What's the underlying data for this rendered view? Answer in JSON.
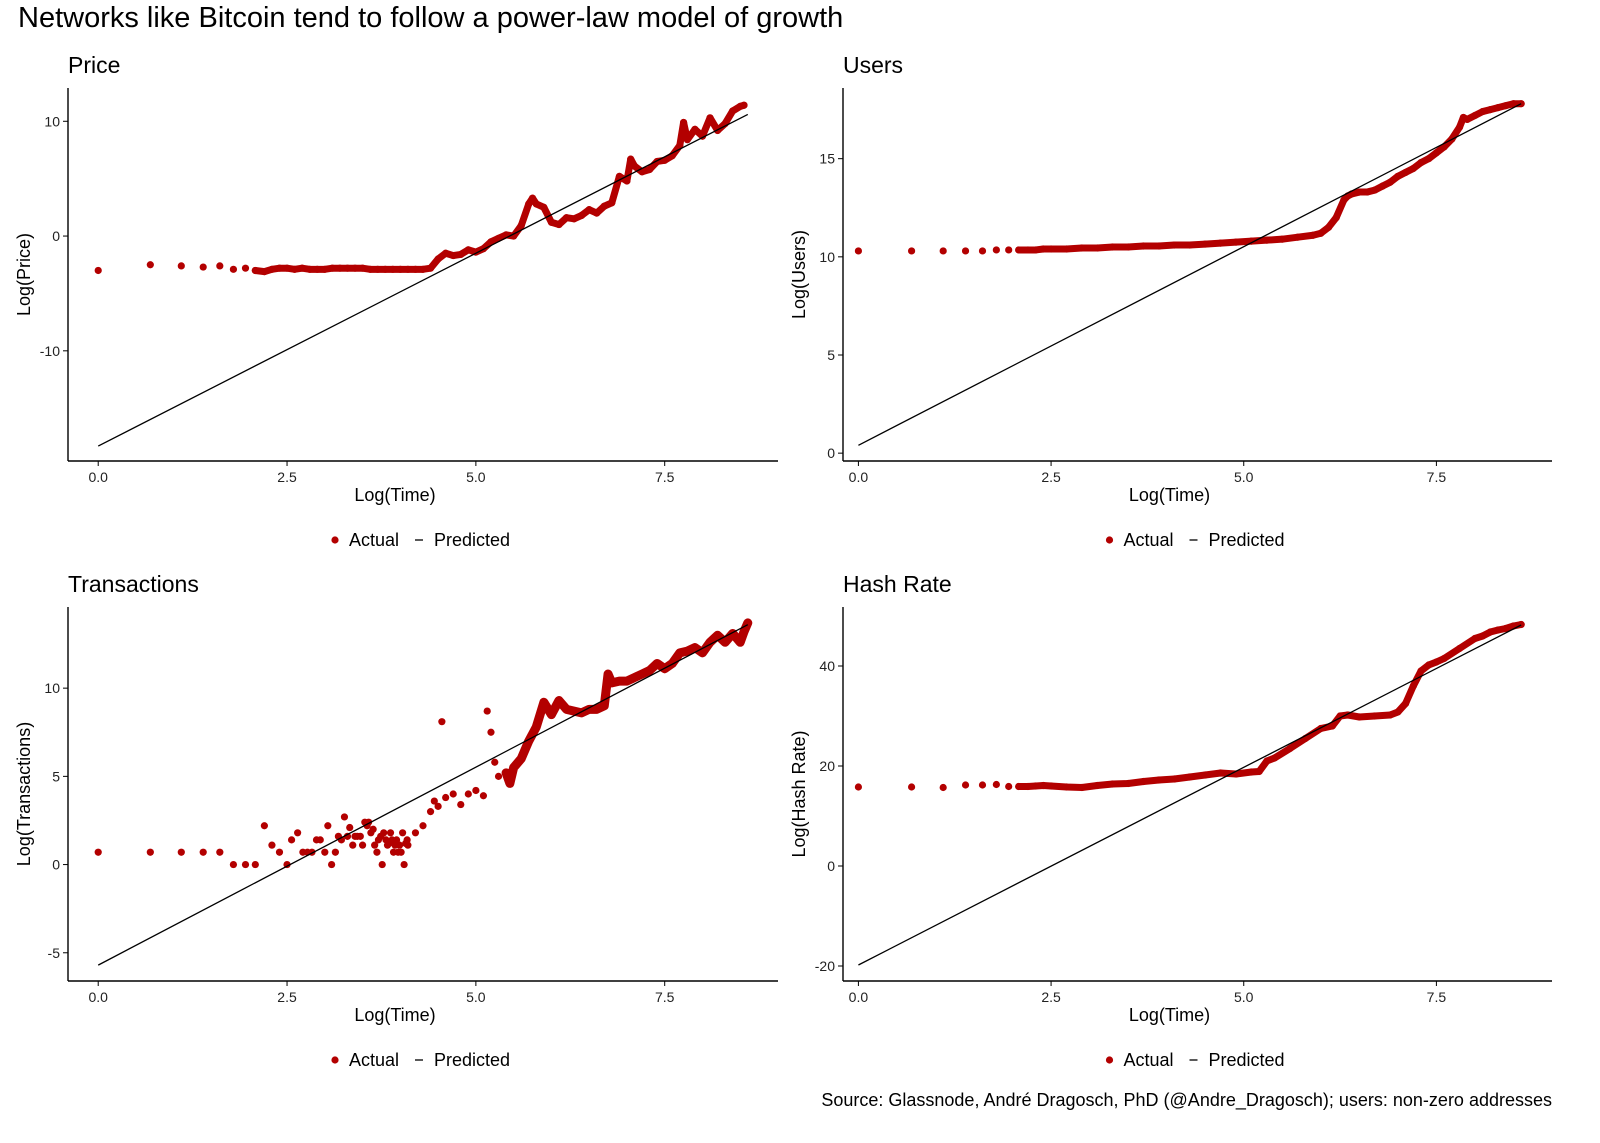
{
  "figure": {
    "title": "Networks like Bitcoin tend to follow a power-law model of growth",
    "source": "Source: Glassnode, André Dragosch, PhD (@Andre_Dragosch); users: non-zero addresses",
    "colors": {
      "actual": "#b30000",
      "predicted": "#000000",
      "axis": "#000000"
    }
  },
  "chart_data": [
    {
      "type": "scatter",
      "title": "Price",
      "xlabel": "Log(Time)",
      "ylabel": "Log(Price)",
      "xlim": [
        -0.4,
        9.0
      ],
      "ylim": [
        -19.6,
        12.9
      ],
      "xticks": [
        0.0,
        2.5,
        5.0,
        7.5
      ],
      "xtick_labels": [
        "0.0",
        "2.5",
        "5.0",
        "7.5"
      ],
      "yticks": [
        -10,
        0,
        10
      ],
      "ytick_labels": [
        "-10",
        "0",
        "10"
      ],
      "grid": false,
      "legend": {
        "position": "bottom",
        "entries": [
          {
            "label": "Actual",
            "symbol": "point"
          },
          {
            "label": "Predicted",
            "symbol": "line"
          }
        ]
      },
      "series": [
        {
          "name": "Actual",
          "type": "scatter",
          "x": [
            0.0,
            0.69,
            1.1,
            1.39,
            1.61,
            1.79,
            1.95,
            2.08,
            2.2,
            2.3,
            2.4,
            2.5,
            2.6,
            2.7,
            2.8,
            2.9,
            3.0,
            3.1,
            3.2,
            3.3,
            3.4,
            3.5,
            3.6,
            3.7,
            3.8,
            3.9,
            4.0,
            4.1,
            4.2,
            4.3,
            4.4,
            4.5,
            4.6,
            4.7,
            4.8,
            4.9,
            5.0,
            5.1,
            5.2,
            5.3,
            5.4,
            5.5,
            5.6,
            5.7,
            5.75,
            5.8,
            5.9,
            6.0,
            6.1,
            6.2,
            6.3,
            6.4,
            6.5,
            6.6,
            6.7,
            6.8,
            6.9,
            7.0,
            7.05,
            7.1,
            7.2,
            7.3,
            7.4,
            7.5,
            7.6,
            7.7,
            7.75,
            7.8,
            7.9,
            8.0,
            8.1,
            8.2,
            8.3,
            8.4,
            8.5,
            8.55
          ],
          "y": [
            -3.0,
            -2.5,
            -2.6,
            -2.7,
            -2.6,
            -2.9,
            -2.8,
            -3.0,
            -3.1,
            -2.9,
            -2.8,
            -2.8,
            -2.9,
            -2.8,
            -2.9,
            -2.9,
            -2.9,
            -2.8,
            -2.8,
            -2.8,
            -2.8,
            -2.8,
            -2.9,
            -2.9,
            -2.9,
            -2.9,
            -2.9,
            -2.9,
            -2.9,
            -2.9,
            -2.8,
            -2.0,
            -1.5,
            -1.7,
            -1.6,
            -1.2,
            -1.4,
            -1.1,
            -0.5,
            -0.2,
            0.1,
            0.0,
            0.9,
            2.8,
            3.3,
            2.8,
            2.5,
            1.2,
            1.0,
            1.6,
            1.5,
            1.8,
            2.3,
            2.0,
            2.6,
            2.9,
            5.2,
            4.8,
            6.7,
            6.1,
            5.6,
            5.8,
            6.5,
            6.6,
            7.0,
            7.9,
            9.9,
            8.4,
            9.3,
            8.7,
            10.3,
            9.2,
            9.8,
            10.9,
            11.3,
            11.4
          ]
        },
        {
          "name": "Predicted",
          "type": "line",
          "x": [
            0.0,
            8.6
          ],
          "y": [
            -18.3,
            10.6
          ]
        }
      ]
    },
    {
      "type": "scatter",
      "title": "Users",
      "xlabel": "Log(Time)",
      "ylabel": "Log(Users)",
      "xlim": [
        -0.2,
        9.0
      ],
      "ylim": [
        -0.4,
        18.6
      ],
      "xticks": [
        0.0,
        2.5,
        5.0,
        7.5
      ],
      "xtick_labels": [
        "0.0",
        "2.5",
        "5.0",
        "7.5"
      ],
      "yticks": [
        0,
        5,
        10,
        15
      ],
      "ytick_labels": [
        "0",
        "5",
        "10",
        "15"
      ],
      "grid": false,
      "legend": {
        "position": "bottom",
        "entries": [
          {
            "label": "Actual",
            "symbol": "point"
          },
          {
            "label": "Predicted",
            "symbol": "line"
          }
        ]
      },
      "series": [
        {
          "name": "Actual",
          "type": "scatter",
          "x": [
            0.0,
            0.69,
            1.1,
            1.39,
            1.61,
            1.79,
            1.95,
            2.08,
            2.2,
            2.3,
            2.4,
            2.5,
            2.7,
            2.9,
            3.1,
            3.3,
            3.5,
            3.7,
            3.9,
            4.1,
            4.3,
            4.5,
            4.7,
            4.9,
            5.1,
            5.3,
            5.5,
            5.7,
            5.9,
            6.0,
            6.1,
            6.2,
            6.3,
            6.35,
            6.4,
            6.5,
            6.6,
            6.7,
            6.8,
            6.9,
            7.0,
            7.1,
            7.2,
            7.3,
            7.4,
            7.5,
            7.6,
            7.7,
            7.8,
            7.85,
            7.9,
            8.0,
            8.1,
            8.2,
            8.3,
            8.4,
            8.5,
            8.6
          ],
          "y": [
            10.3,
            10.3,
            10.3,
            10.3,
            10.3,
            10.35,
            10.35,
            10.35,
            10.35,
            10.35,
            10.4,
            10.4,
            10.4,
            10.45,
            10.45,
            10.5,
            10.5,
            10.55,
            10.55,
            10.6,
            10.6,
            10.65,
            10.7,
            10.75,
            10.8,
            10.85,
            10.9,
            11.0,
            11.1,
            11.2,
            11.5,
            12.0,
            12.9,
            13.1,
            13.2,
            13.3,
            13.3,
            13.4,
            13.6,
            13.8,
            14.1,
            14.3,
            14.5,
            14.8,
            15.0,
            15.3,
            15.6,
            16.0,
            16.6,
            17.1,
            17.0,
            17.2,
            17.4,
            17.5,
            17.6,
            17.7,
            17.8,
            17.8
          ]
        },
        {
          "name": "Predicted",
          "type": "line",
          "x": [
            0.0,
            8.6
          ],
          "y": [
            0.4,
            17.8
          ]
        }
      ]
    },
    {
      "type": "scatter",
      "title": "Transactions",
      "xlabel": "Log(Time)",
      "ylabel": "Log(Transactions)",
      "xlim": [
        -0.4,
        9.0
      ],
      "ylim": [
        -6.6,
        14.6
      ],
      "xticks": [
        0.0,
        2.5,
        5.0,
        7.5
      ],
      "xtick_labels": [
        "0.0",
        "2.5",
        "5.0",
        "7.5"
      ],
      "yticks": [
        -5,
        0,
        5,
        10
      ],
      "ytick_labels": [
        "-5",
        "0",
        "5",
        "10"
      ],
      "grid": false,
      "legend": {
        "position": "bottom",
        "entries": [
          {
            "label": "Actual",
            "symbol": "point"
          },
          {
            "label": "Predicted",
            "symbol": "line"
          }
        ]
      },
      "series": [
        {
          "name": "Actual",
          "type": "scatter",
          "x": [
            0.0,
            0.69,
            1.1,
            1.39,
            1.61,
            1.79,
            1.95,
            2.08,
            2.2,
            2.3,
            2.4,
            2.5,
            2.56,
            2.64,
            2.71,
            2.77,
            2.83,
            2.89,
            2.94,
            3.0,
            3.04,
            3.09,
            3.14,
            3.18,
            3.22,
            3.26,
            3.3,
            3.33,
            3.37,
            3.4,
            3.43,
            3.47,
            3.5,
            3.53,
            3.56,
            3.58,
            3.61,
            3.64,
            3.66,
            3.69,
            3.71,
            3.74,
            3.76,
            3.78,
            3.81,
            3.83,
            3.85,
            3.87,
            3.89,
            3.91,
            3.93,
            3.95,
            3.97,
            3.99,
            4.01,
            4.03,
            4.05,
            4.07,
            4.09,
            4.1,
            4.2,
            4.3,
            4.4,
            4.45,
            4.5,
            4.55,
            4.6,
            4.7,
            4.8,
            4.9,
            5.0,
            5.1,
            5.15,
            5.2,
            5.25,
            5.3,
            5.4,
            5.45,
            5.5,
            5.6,
            5.7,
            5.8,
            5.9,
            6.0,
            6.1,
            6.2,
            6.3,
            6.4,
            6.5,
            6.6,
            6.7,
            6.75,
            6.8,
            6.9,
            7.0,
            7.1,
            7.2,
            7.3,
            7.4,
            7.5,
            7.6,
            7.7,
            7.8,
            7.9,
            8.0,
            8.1,
            8.2,
            8.3,
            8.4,
            8.5,
            8.55,
            8.6
          ],
          "y": [
            0.7,
            0.7,
            0.7,
            0.7,
            0.7,
            0.0,
            0.0,
            0.0,
            2.2,
            1.1,
            0.7,
            0.0,
            1.4,
            1.8,
            0.7,
            0.7,
            0.7,
            1.4,
            1.4,
            0.7,
            2.2,
            0.0,
            0.7,
            1.6,
            1.4,
            2.7,
            1.6,
            2.1,
            1.1,
            1.6,
            1.6,
            1.6,
            1.1,
            2.4,
            2.2,
            2.4,
            1.8,
            2.0,
            1.1,
            0.7,
            1.4,
            1.6,
            0.0,
            1.8,
            1.4,
            1.1,
            1.2,
            1.8,
            1.4,
            0.7,
            1.1,
            1.4,
            0.7,
            1.1,
            0.7,
            1.8,
            0.0,
            1.2,
            1.4,
            1.1,
            1.8,
            2.2,
            3.0,
            3.6,
            3.3,
            8.1,
            3.8,
            4.0,
            3.4,
            4.0,
            4.2,
            3.9,
            8.7,
            7.5,
            5.8,
            5.0,
            5.2,
            4.6,
            5.5,
            6.0,
            7.0,
            7.8,
            9.2,
            8.5,
            9.3,
            8.8,
            8.7,
            8.6,
            8.8,
            8.8,
            9.0,
            10.8,
            10.3,
            10.4,
            10.4,
            10.6,
            10.8,
            11.0,
            11.4,
            11.1,
            11.4,
            12.0,
            12.1,
            12.3,
            12.0,
            12.6,
            13.0,
            12.6,
            13.1,
            12.6,
            13.2,
            13.7
          ]
        },
        {
          "name": "Predicted",
          "type": "line",
          "x": [
            0.0,
            8.6
          ],
          "y": [
            -5.7,
            13.6
          ]
        }
      ]
    },
    {
      "type": "scatter",
      "title": "Hash Rate",
      "xlabel": "Log(Time)",
      "ylabel": "Log(Hash Rate)",
      "xlim": [
        -0.2,
        9.0
      ],
      "ylim": [
        -23.0,
        51.8
      ],
      "xticks": [
        0.0,
        2.5,
        5.0,
        7.5
      ],
      "xtick_labels": [
        "0.0",
        "2.5",
        "5.0",
        "7.5"
      ],
      "yticks": [
        -20,
        0,
        20,
        40
      ],
      "ytick_labels": [
        "-20",
        "0",
        "20",
        "40"
      ],
      "grid": false,
      "legend": {
        "position": "bottom",
        "entries": [
          {
            "label": "Actual",
            "symbol": "point"
          },
          {
            "label": "Predicted",
            "symbol": "line"
          }
        ]
      },
      "series": [
        {
          "name": "Actual",
          "type": "scatter",
          "x": [
            0.0,
            0.69,
            1.1,
            1.39,
            1.61,
            1.79,
            1.95,
            2.08,
            2.2,
            2.3,
            2.4,
            2.5,
            2.7,
            2.9,
            3.1,
            3.3,
            3.5,
            3.7,
            3.9,
            4.1,
            4.3,
            4.5,
            4.7,
            4.9,
            5.1,
            5.2,
            5.3,
            5.4,
            5.6,
            5.8,
            6.0,
            6.15,
            6.25,
            6.35,
            6.5,
            6.7,
            6.9,
            7.0,
            7.1,
            7.2,
            7.3,
            7.4,
            7.5,
            7.6,
            7.8,
            8.0,
            8.1,
            8.2,
            8.3,
            8.4,
            8.5,
            8.6
          ],
          "y": [
            15.8,
            15.8,
            15.7,
            16.2,
            16.2,
            16.3,
            15.9,
            15.9,
            15.9,
            16.0,
            16.1,
            16.0,
            15.8,
            15.7,
            16.1,
            16.4,
            16.5,
            16.9,
            17.2,
            17.4,
            17.8,
            18.2,
            18.6,
            18.4,
            18.8,
            18.9,
            21.0,
            21.6,
            23.5,
            25.5,
            27.5,
            28.0,
            30.0,
            30.2,
            29.8,
            30.0,
            30.2,
            30.8,
            32.5,
            36.0,
            39.0,
            40.2,
            40.8,
            41.5,
            43.5,
            45.5,
            46.0,
            46.8,
            47.2,
            47.5,
            48.0,
            48.3
          ]
        },
        {
          "name": "Predicted",
          "type": "line",
          "x": [
            0.0,
            8.6
          ],
          "y": [
            -19.8,
            48.2
          ]
        }
      ]
    }
  ]
}
